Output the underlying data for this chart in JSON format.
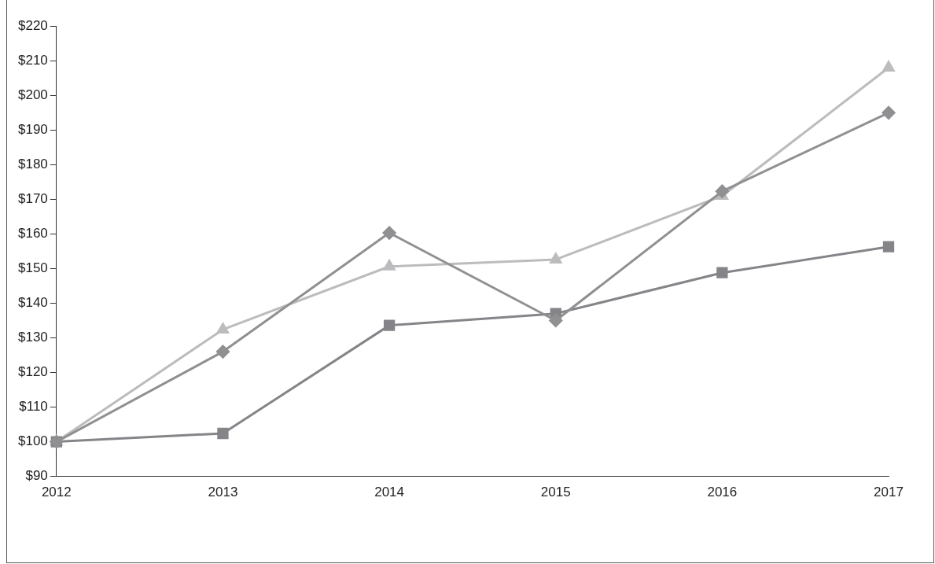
{
  "chart_data": {
    "type": "line",
    "categories": [
      "2012",
      "2013",
      "2014",
      "2015",
      "2016",
      "2017"
    ],
    "series": [
      {
        "color": "#909093",
        "marker": "diamond",
        "values": [
          100,
          126,
          160.3,
          135,
          172.3,
          195
        ]
      },
      {
        "color": "#858589",
        "marker": "square",
        "values": [
          100,
          102.4,
          133.6,
          137,
          148.8,
          156.3
        ]
      },
      {
        "color": "#bcbcbe",
        "marker": "triangle",
        "values": [
          100,
          132.4,
          150.6,
          152.6,
          171,
          208
        ]
      }
    ],
    "ylim": [
      90,
      220
    ],
    "yticks": [
      {
        "value": 90,
        "label": "$90"
      },
      {
        "value": 100,
        "label": "$100"
      },
      {
        "value": 110,
        "label": "$110"
      },
      {
        "value": 120,
        "label": "$120"
      },
      {
        "value": 130,
        "label": "$130"
      },
      {
        "value": 140,
        "label": "$140"
      },
      {
        "value": 150,
        "label": "$150"
      },
      {
        "value": 160,
        "label": "$160"
      },
      {
        "value": 170,
        "label": "$170"
      },
      {
        "value": 180,
        "label": "$180"
      },
      {
        "value": 190,
        "label": "$190"
      },
      {
        "value": 200,
        "label": "$200"
      },
      {
        "value": 210,
        "label": "$210"
      },
      {
        "value": 220,
        "label": "$220"
      }
    ],
    "grid": false,
    "legend": false,
    "line_style": "solid"
  }
}
